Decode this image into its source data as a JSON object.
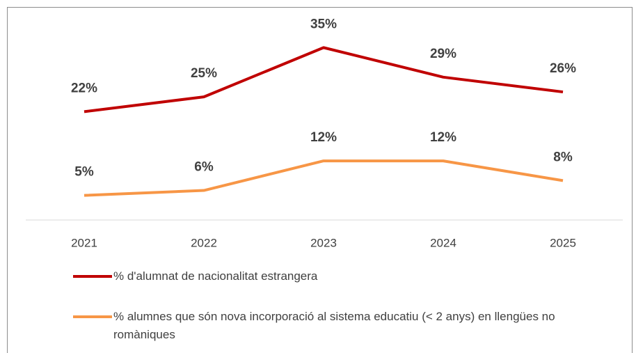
{
  "chart_data": {
    "type": "line",
    "categories": [
      "2021",
      "2022",
      "2023",
      "2024",
      "2025"
    ],
    "series": [
      {
        "name": "% d'alumnat de nacionalitat estrangera",
        "color": "#c00000",
        "values": [
          22,
          25,
          35,
          29,
          26
        ],
        "value_labels": [
          "22%",
          "25%",
          "35%",
          "29%",
          "26%"
        ]
      },
      {
        "name": "% alumnes que són nova incorporació al sistema educatiu (< 2 anys) en llengües no romàniques",
        "color": "#f79646",
        "values": [
          5,
          6,
          12,
          12,
          8
        ],
        "value_labels": [
          "5%",
          "6%",
          "12%",
          "12%",
          "8%"
        ]
      }
    ],
    "ylim": [
      0,
      40
    ]
  }
}
